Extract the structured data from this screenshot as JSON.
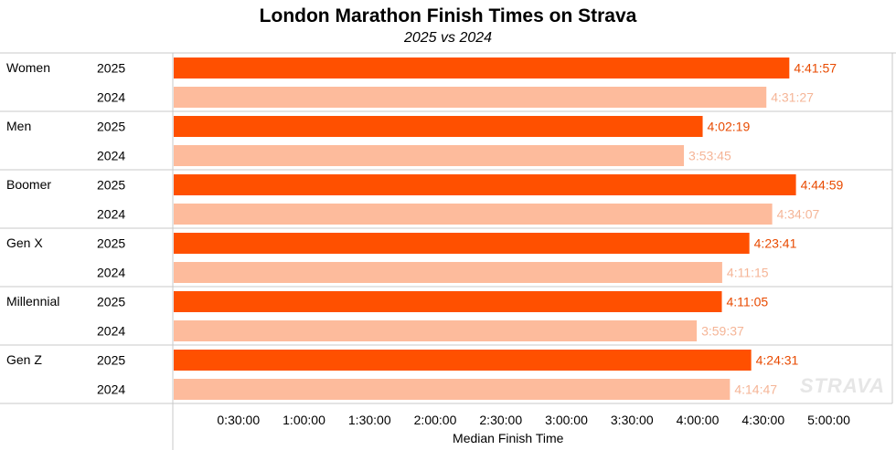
{
  "title": "London Marathon Finish Times on Strava",
  "subtitle": "2025 vs 2024",
  "watermark": "STRAVA",
  "colors": {
    "series_2025": "#ff5000",
    "series_2024": "#fdbb9c",
    "label_2025": "#e84a00",
    "label_2024": "#f5b597",
    "grid": "#c8c8c8"
  },
  "chart_data": {
    "type": "bar",
    "orientation": "horizontal",
    "title": "London Marathon Finish Times on Strava",
    "subtitle": "2025 vs 2024",
    "xlabel": "Median Finish Time",
    "ylabel": "",
    "categories": [
      "Women",
      "Men",
      "Boomer",
      "Gen X",
      "Millennial",
      "Gen Z"
    ],
    "series": [
      {
        "name": "2025",
        "values": [
          "4:41:57",
          "4:02:19",
          "4:44:59",
          "4:23:41",
          "4:11:05",
          "4:24:31"
        ]
      },
      {
        "name": "2024",
        "values": [
          "4:31:27",
          "3:53:45",
          "4:34:07",
          "4:11:15",
          "3:59:37",
          "4:14:47"
        ]
      }
    ],
    "xticks": [
      "0:30:00",
      "1:00:00",
      "1:30:00",
      "2:00:00",
      "2:30:00",
      "3:00:00",
      "3:30:00",
      "4:00:00",
      "4:30:00",
      "5:00:00"
    ],
    "xlim": [
      "0:00:00",
      "5:12:00"
    ],
    "grid": false
  }
}
